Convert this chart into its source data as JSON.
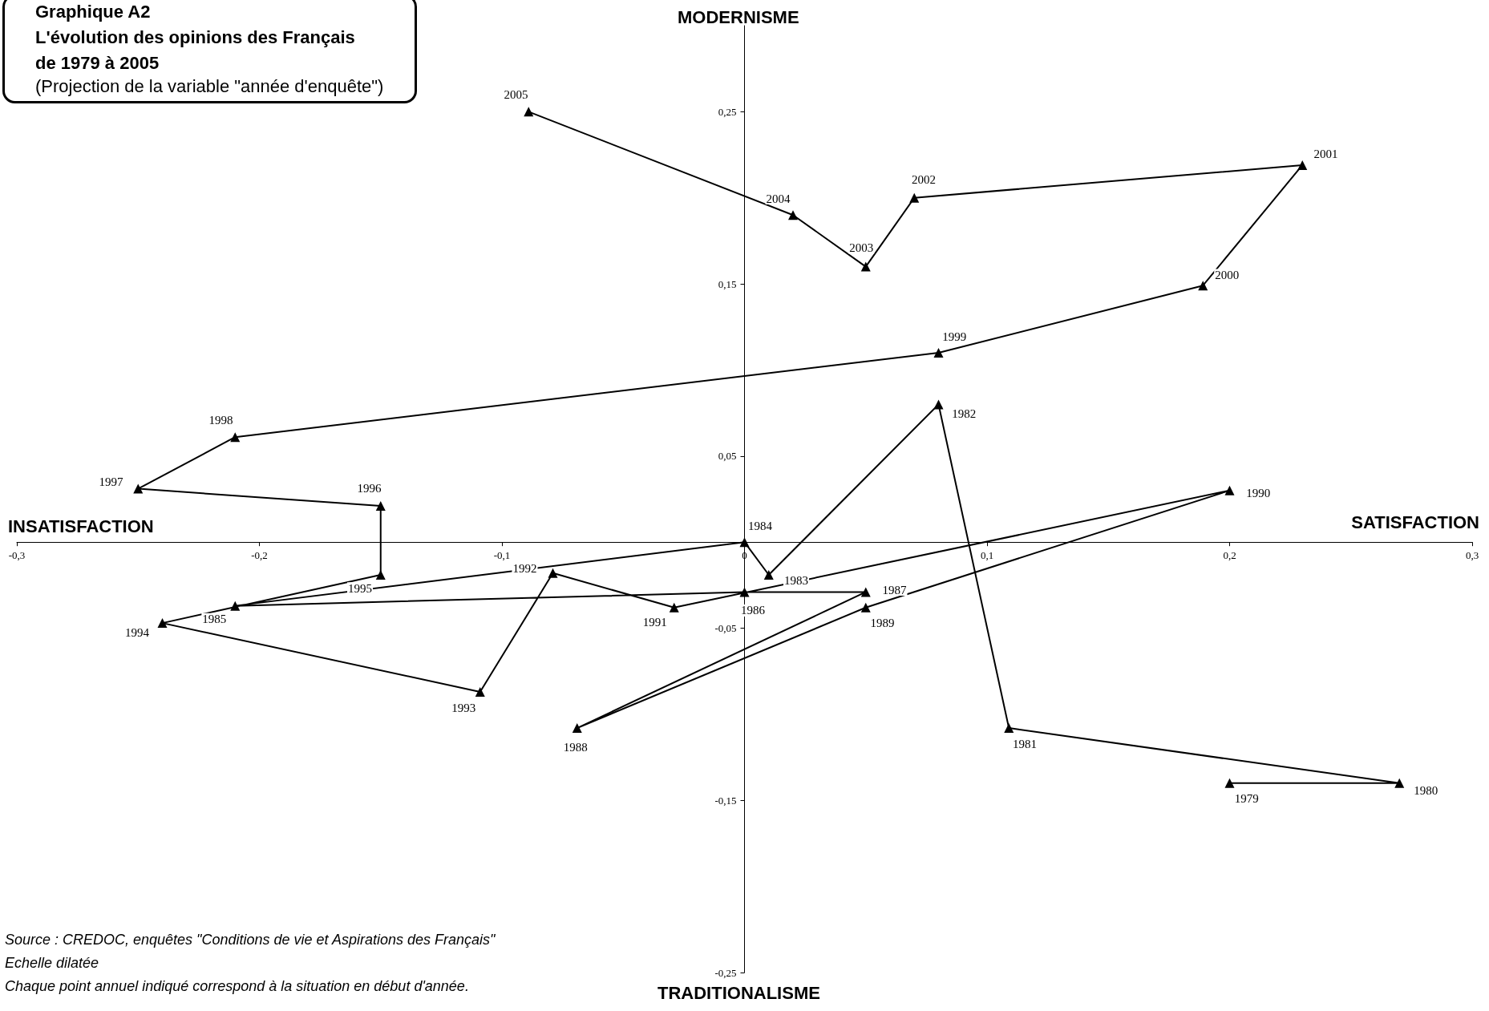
{
  "chart_data": {
    "type": "line",
    "title": "Graphique A2\nL'évolution des opinions des Français\nde 1979 à 2005",
    "subtitle": "(Projection de la variable \"année d'enquête\")",
    "annotations": [
      "MODERNISME",
      "TRADITIONALISME",
      "INSATISFACTION",
      "SATISFACTION",
      "Source : CREDOC, enquêtes \"Conditions de vie et Aspirations des Français\"",
      "Echelle dilatée",
      "Chaque point annuel indiqué correspond à la situation en début d'année.",
      {
        "text": "1979",
        "x": 0.2,
        "y": -0.14
      },
      {
        "text": "1980",
        "x": 0.27,
        "y": -0.14
      },
      {
        "text": "1981",
        "x": 0.109,
        "y": -0.108
      },
      {
        "text": "1982",
        "x": 0.08,
        "y": 0.08
      },
      {
        "text": "1983",
        "x": 0.01,
        "y": -0.019
      },
      {
        "text": "1984",
        "x": 0,
        "y": 0
      },
      {
        "text": "1985",
        "x": -0.21,
        "y": -0.037
      },
      {
        "text": "1986",
        "x": 0,
        "y": -0.029
      },
      {
        "text": "1987",
        "x": 0.05,
        "y": -0.029
      },
      {
        "text": "1988",
        "x": -0.069,
        "y": -0.108
      },
      {
        "text": "1989",
        "x": 0.05,
        "y": -0.038
      },
      {
        "text": "1990",
        "x": 0.2,
        "y": 0.03
      },
      {
        "text": "1991",
        "x": -0.029,
        "y": -0.038
      },
      {
        "text": "1992",
        "x": -0.079,
        "y": -0.018
      },
      {
        "text": "1993",
        "x": -0.109,
        "y": -0.087
      },
      {
        "text": "1994",
        "x": -0.24,
        "y": -0.047
      },
      {
        "text": "1995",
        "x": -0.15,
        "y": -0.019
      },
      {
        "text": "1996",
        "x": -0.15,
        "y": 0.021
      },
      {
        "text": "1997",
        "x": -0.25,
        "y": 0.031
      },
      {
        "text": "1998",
        "x": -0.21,
        "y": 0.061
      },
      {
        "text": "1999",
        "x": 0.08,
        "y": 0.11
      },
      {
        "text": "2000",
        "x": 0.189,
        "y": 0.149
      },
      {
        "text": "2001",
        "x": 0.23,
        "y": 0.219
      },
      {
        "text": "2002",
        "x": 0.07,
        "y": 0.2
      },
      {
        "text": "2003",
        "x": 0.05,
        "y": 0.16
      },
      {
        "text": "2004",
        "x": 0.02,
        "y": 0.19
      },
      {
        "text": "2005",
        "x": -0.089,
        "y": 0.25
      }
    ],
    "series": [
      {
        "color": "#000000",
        "x": [
          0.2,
          0.27,
          0.109,
          0.08,
          0.01,
          0,
          -0.21,
          0,
          0.05,
          -0.069,
          0.05,
          0.2,
          -0.029,
          -0.079,
          -0.109,
          -0.24,
          -0.15,
          -0.15,
          -0.25,
          -0.21,
          0.08,
          0.189,
          0.23,
          0.07,
          0.05,
          0.02,
          -0.089
        ],
        "values": [
          -0.14,
          -0.14,
          -0.108,
          0.08,
          -0.019,
          0,
          -0.037,
          -0.029,
          -0.029,
          -0.108,
          -0.038,
          0.03,
          -0.038,
          -0.018,
          -0.087,
          -0.047,
          -0.019,
          0.021,
          0.031,
          0.061,
          0.11,
          0.149,
          0.219,
          0.2,
          0.16,
          0.19,
          0.25
        ]
      }
    ],
    "xlim": [
      -0.3,
      0.3
    ],
    "ylim": [
      -0.25,
      0.3
    ],
    "xticks": [
      {
        "value": -0.3,
        "label": "-0,3"
      },
      {
        "value": -0.2,
        "label": "-0,2"
      },
      {
        "value": -0.1,
        "label": "-0,1"
      },
      0,
      {
        "value": 0.1,
        "label": "0,1"
      },
      {
        "value": 0.2,
        "label": "0,2"
      },
      {
        "value": 0.3,
        "label": "0,3"
      }
    ],
    "yticks": [
      {
        "value": -0.25,
        "label": "-0,25"
      },
      {
        "value": -0.15,
        "label": "-0,15"
      },
      {
        "value": -0.05,
        "label": "-0,05"
      },
      {
        "value": 0.05,
        "label": "0,05"
      },
      {
        "value": 0.15,
        "label": "0,15"
      },
      {
        "value": 0.25,
        "label": "0,25"
      }
    ],
    "marker": "triangle",
    "line_style": "solid"
  }
}
